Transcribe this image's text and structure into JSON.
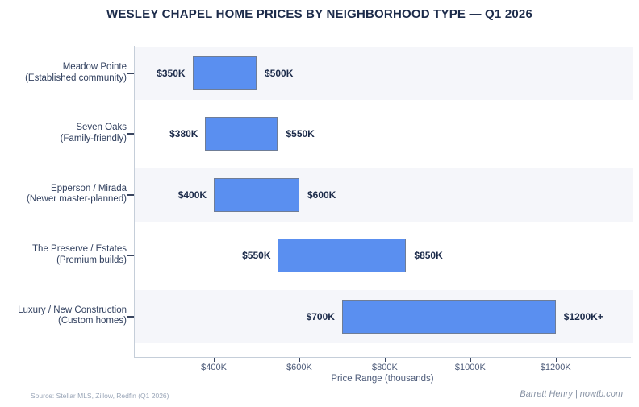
{
  "title": "WESLEY CHAPEL HOME PRICES BY NEIGHBORHOOD TYPE — Q1 2026",
  "chart_data": {
    "type": "bar",
    "subtype": "horizontal-range-bars",
    "title": "WESLEY CHAPEL HOME PRICES BY NEIGHBORHOOD TYPE — Q1 2026",
    "xlabel": "Price Range (thousands)",
    "ylabel": "",
    "xlim": [
      213,
      1376
    ],
    "grid": false,
    "legend": false,
    "bar_color": "#5a8ff0",
    "bar_border_color": "#6f7d96",
    "band_color": "#f5f6fa",
    "categories": [
      {
        "name": "Meadow Pointe",
        "subtitle": "(Established community)",
        "low": 350,
        "high": 500,
        "low_label": "$350K",
        "high_label": "$500K"
      },
      {
        "name": "Seven Oaks",
        "subtitle": "(Family-friendly)",
        "low": 380,
        "high": 550,
        "low_label": "$380K",
        "high_label": "$550K"
      },
      {
        "name": "Epperson / Mirada",
        "subtitle": "(Newer master-planned)",
        "low": 400,
        "high": 600,
        "low_label": "$400K",
        "high_label": "$600K"
      },
      {
        "name": "The Preserve / Estates",
        "subtitle": "(Premium builds)",
        "low": 550,
        "high": 850,
        "low_label": "$550K",
        "high_label": "$850K"
      },
      {
        "name": "Luxury / New Construction",
        "subtitle": "(Custom homes)",
        "low": 700,
        "high": 1200,
        "low_label": "$700K",
        "high_label": "$1200K+"
      }
    ],
    "x_ticks": [
      {
        "value": 400,
        "label": "$400K"
      },
      {
        "value": 600,
        "label": "$600K"
      },
      {
        "value": 800,
        "label": "$800K"
      },
      {
        "value": 1000,
        "label": "$1000K"
      },
      {
        "value": 1200,
        "label": "$1200K"
      }
    ]
  },
  "footer": {
    "source": "Source: Stellar MLS, Zillow, Redfin (Q1 2026)",
    "attribution": "Barrett Henry | nowtb.com"
  }
}
